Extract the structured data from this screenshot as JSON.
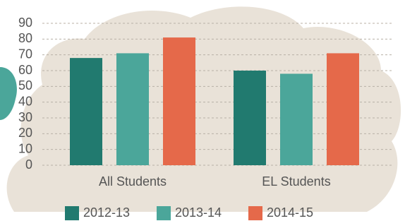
{
  "chart_data": {
    "type": "bar",
    "categories": [
      "All Students",
      "EL Students"
    ],
    "series": [
      {
        "name": "2012-13",
        "color": "#217a6f",
        "values": [
          68,
          60
        ]
      },
      {
        "name": "2013-14",
        "color": "#4ba69a",
        "values": [
          71,
          58
        ]
      },
      {
        "name": "2014-15",
        "color": "#e5694a",
        "values": [
          81,
          71
        ]
      }
    ],
    "ylim": [
      0,
      90
    ],
    "yticks": [
      0,
      10,
      20,
      30,
      40,
      50,
      60,
      70,
      80,
      90
    ],
    "grid": true,
    "legend": "bottom"
  }
}
